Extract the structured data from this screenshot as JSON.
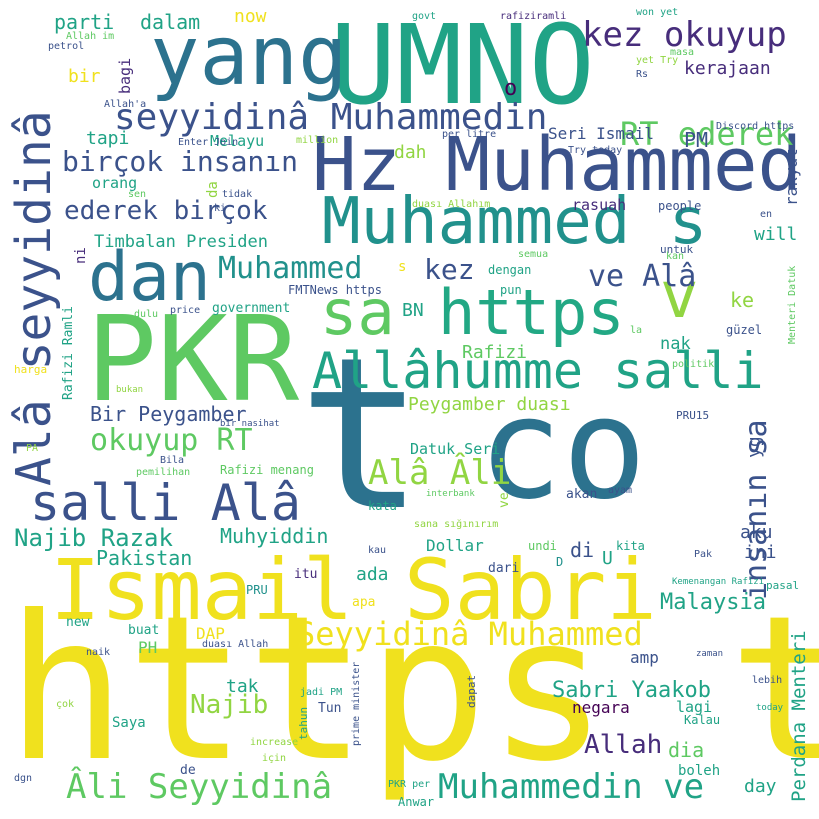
{
  "palette": {
    "yellow": "#f0e11e",
    "lime": "#91d542",
    "green": "#5ec962",
    "teal": "#20a386",
    "seaGreen": "#22a884",
    "cyan": "#21918c",
    "blue": "#2c728e",
    "indigo": "#3b528b",
    "violet": "#472d7b",
    "purple": "#440154"
  },
  "words": [
    {
      "text": "https t",
      "color": "yellow"
    },
    {
      "text": "t",
      "color": "blue"
    },
    {
      "text": "co",
      "color": "blue"
    },
    {
      "text": "PKR",
      "color": "green"
    },
    {
      "text": "UMNO",
      "color": "teal"
    },
    {
      "text": "Ismail Sabri",
      "color": "yellow"
    },
    {
      "text": "yang",
      "color": "blue"
    },
    {
      "text": "Hz Muhammed",
      "color": "indigo"
    },
    {
      "text": "Muhammed s",
      "color": "cyan"
    },
    {
      "text": "dan",
      "color": "blue"
    },
    {
      "text": "sa",
      "color": "green"
    },
    {
      "text": "https",
      "color": "seaGreen"
    },
    {
      "text": "v",
      "color": "lime"
    },
    {
      "text": "Allâhumme salli",
      "color": "teal"
    },
    {
      "text": "salli Alâ",
      "color": "indigo"
    },
    {
      "text": "Alâ seyyidinâ",
      "color": "indigo"
    },
    {
      "text": "seyyidinâ Muhammedin",
      "color": "indigo"
    },
    {
      "text": "kez okuyup",
      "color": "violet"
    },
    {
      "text": "RT ederek",
      "color": "green"
    },
    {
      "text": "birçok insanın",
      "color": "indigo"
    },
    {
      "text": "ederek birçok",
      "color": "indigo"
    },
    {
      "text": "ve Alâ",
      "color": "indigo"
    },
    {
      "text": "Muhammed",
      "color": "cyan"
    },
    {
      "text": "kez",
      "color": "indigo"
    },
    {
      "text": "okuyup RT",
      "color": "green"
    },
    {
      "text": "Alâ Âli",
      "color": "lime"
    },
    {
      "text": "insanın sa",
      "color": "indigo"
    },
    {
      "text": "Seyyidinâ Muhammed",
      "color": "yellow"
    },
    {
      "text": "Muhammedin ve",
      "color": "teal"
    },
    {
      "text": "Âli Seyyidinâ",
      "color": "green"
    },
    {
      "text": "Najib Razak",
      "color": "teal"
    },
    {
      "text": "Muhyiddin",
      "color": "teal"
    },
    {
      "text": "Pakistan",
      "color": "teal"
    },
    {
      "text": "Perdana Menteri",
      "color": "teal"
    },
    {
      "text": "Malaysia",
      "color": "teal"
    },
    {
      "text": "Sabri Yaakob",
      "color": "teal"
    },
    {
      "text": "Allah",
      "color": "violet"
    },
    {
      "text": "Najib",
      "color": "lime"
    },
    {
      "text": "Peygamber duası",
      "color": "lime"
    },
    {
      "text": "Bir Peygamber",
      "color": "indigo"
    },
    {
      "text": "Timbalan Presiden",
      "color": "teal"
    },
    {
      "text": "parti",
      "color": "teal"
    },
    {
      "text": "dalam",
      "color": "teal"
    },
    {
      "text": "now",
      "color": "yellow"
    },
    {
      "text": "bir",
      "color": "yellow"
    },
    {
      "text": "bagi",
      "color": "violet"
    },
    {
      "text": "o",
      "color": "purple"
    },
    {
      "text": "kerajaan",
      "color": "violet"
    },
    {
      "text": "tapi",
      "color": "teal"
    },
    {
      "text": "Melayu",
      "color": "teal"
    },
    {
      "text": "Seri Ismail",
      "color": "indigo"
    },
    {
      "text": "PM",
      "color": "indigo"
    },
    {
      "text": "dah",
      "color": "lime"
    },
    {
      "text": "rakyat",
      "color": "indigo"
    },
    {
      "text": "orang",
      "color": "teal"
    },
    {
      "text": "da",
      "color": "lime"
    },
    {
      "text": "rasuah",
      "color": "violet"
    },
    {
      "text": "will",
      "color": "teal"
    },
    {
      "text": "Rafizi",
      "color": "green"
    },
    {
      "text": "nak",
      "color": "teal"
    },
    {
      "text": "BN",
      "color": "teal"
    },
    {
      "text": "ke",
      "color": "lime"
    },
    {
      "text": "yg",
      "color": "indigo"
    },
    {
      "text": "aku",
      "color": "indigo"
    },
    {
      "text": "ini",
      "color": "indigo"
    },
    {
      "text": "di",
      "color": "indigo"
    },
    {
      "text": "ada",
      "color": "teal"
    },
    {
      "text": "Dollar",
      "color": "teal"
    },
    {
      "text": "Datuk Seri",
      "color": "teal"
    },
    {
      "text": "tak",
      "color": "teal"
    },
    {
      "text": "DAP",
      "color": "yellow"
    },
    {
      "text": "PH",
      "color": "green"
    },
    {
      "text": "amp",
      "color": "indigo"
    },
    {
      "text": "negara",
      "color": "purple"
    },
    {
      "text": "lagi",
      "color": "teal"
    },
    {
      "text": "dia",
      "color": "green"
    },
    {
      "text": "day",
      "color": "teal"
    },
    {
      "text": "boleh",
      "color": "teal"
    },
    {
      "text": "Anwar",
      "color": "teal"
    },
    {
      "text": "Tun",
      "color": "indigo"
    },
    {
      "text": "Saya",
      "color": "teal"
    },
    {
      "text": "Kalau",
      "color": "teal"
    },
    {
      "text": "itu",
      "color": "violet"
    },
    {
      "text": "apa",
      "color": "yellow"
    },
    {
      "text": "buat",
      "color": "teal"
    },
    {
      "text": "new",
      "color": "teal"
    },
    {
      "text": "akan",
      "color": "indigo"
    },
    {
      "text": "ve",
      "color": "lime"
    },
    {
      "text": "kata",
      "color": "teal"
    },
    {
      "text": "dari",
      "color": "indigo"
    },
    {
      "text": "undi",
      "color": "green"
    },
    {
      "text": "kita",
      "color": "teal"
    },
    {
      "text": "U",
      "color": "teal"
    },
    {
      "text": "D",
      "color": "cyan"
    },
    {
      "text": "pun",
      "color": "teal"
    },
    {
      "text": "dengan",
      "color": "teal"
    },
    {
      "text": "government",
      "color": "teal"
    },
    {
      "text": "FMTNews https",
      "color": "indigo"
    },
    {
      "text": "Rafizi menang",
      "color": "green"
    },
    {
      "text": "Rafizi Ramli",
      "color": "teal"
    },
    {
      "text": "ni",
      "color": "violet"
    },
    {
      "text": "s",
      "color": "yellow"
    },
    {
      "text": "PRU",
      "color": "cyan"
    },
    {
      "text": "PRU15",
      "color": "indigo"
    },
    {
      "text": "people",
      "color": "indigo"
    },
    {
      "text": "untuk",
      "color": "indigo"
    },
    {
      "text": "güzel",
      "color": "indigo"
    },
    {
      "text": "en",
      "color": "indigo"
    },
    {
      "text": "Menteri Datuk",
      "color": "green"
    },
    {
      "text": "Discord https",
      "color": "indigo"
    },
    {
      "text": "Try today",
      "color": "indigo"
    },
    {
      "text": "per litre",
      "color": "indigo"
    },
    {
      "text": "million",
      "color": "lime"
    },
    {
      "text": "Enter Join",
      "color": "indigo"
    },
    {
      "text": "Allah'a",
      "color": "indigo"
    },
    {
      "text": "govt",
      "color": "teal"
    },
    {
      "text": "rafiziramli",
      "color": "violet"
    },
    {
      "text": "won yet",
      "color": "teal"
    },
    {
      "text": "masa",
      "color": "green"
    },
    {
      "text": "yet Try",
      "color": "lime"
    },
    {
      "text": "Rs",
      "color": "indigo"
    },
    {
      "text": "Allah im",
      "color": "green"
    },
    {
      "text": "petrol",
      "color": "indigo"
    },
    {
      "text": "sen",
      "color": "green"
    },
    {
      "text": "tidak",
      "color": "indigo"
    },
    {
      "text": "ki",
      "color": "indigo"
    },
    {
      "text": "duası Allahım",
      "color": "lime"
    },
    {
      "text": "semua",
      "color": "green"
    },
    {
      "text": "kan",
      "color": "green"
    },
    {
      "text": "price",
      "color": "indigo"
    },
    {
      "text": "dulu",
      "color": "green"
    },
    {
      "text": "la",
      "color": "green"
    },
    {
      "text": "harga",
      "color": "yellow"
    },
    {
      "text": "bukan",
      "color": "lime"
    },
    {
      "text": "politik",
      "color": "green"
    },
    {
      "text": "bir nasihat",
      "color": "indigo"
    },
    {
      "text": "PA",
      "color": "lime"
    },
    {
      "text": "Bila",
      "color": "indigo"
    },
    {
      "text": "pemilihan",
      "color": "green"
    },
    {
      "text": "interbank",
      "color": "green"
    },
    {
      "text": "ayam",
      "color": "indigo"
    },
    {
      "text": "sana sığınırım",
      "color": "lime"
    },
    {
      "text": "kau",
      "color": "indigo"
    },
    {
      "text": "Pak",
      "color": "indigo"
    },
    {
      "text": "Kemenangan Rafizi",
      "color": "teal"
    },
    {
      "text": "pasal",
      "color": "teal"
    },
    {
      "text": "duası Allah",
      "color": "indigo"
    },
    {
      "text": "naik",
      "color": "indigo"
    },
    {
      "text": "zaman",
      "color": "indigo"
    },
    {
      "text": "jadi PM",
      "color": "teal"
    },
    {
      "text": "prime minister",
      "color": "indigo"
    },
    {
      "text": "tahun",
      "color": "teal"
    },
    {
      "text": "dapat",
      "color": "indigo"
    },
    {
      "text": "lebih",
      "color": "indigo"
    },
    {
      "text": "today",
      "color": "teal"
    },
    {
      "text": "çok",
      "color": "lime"
    },
    {
      "text": "increase",
      "color": "lime"
    },
    {
      "text": "için",
      "color": "lime"
    },
    {
      "text": "de",
      "color": "indigo"
    },
    {
      "text": "dgn",
      "color": "indigo"
    },
    {
      "text": "PKR per",
      "color": "teal"
    }
  ]
}
